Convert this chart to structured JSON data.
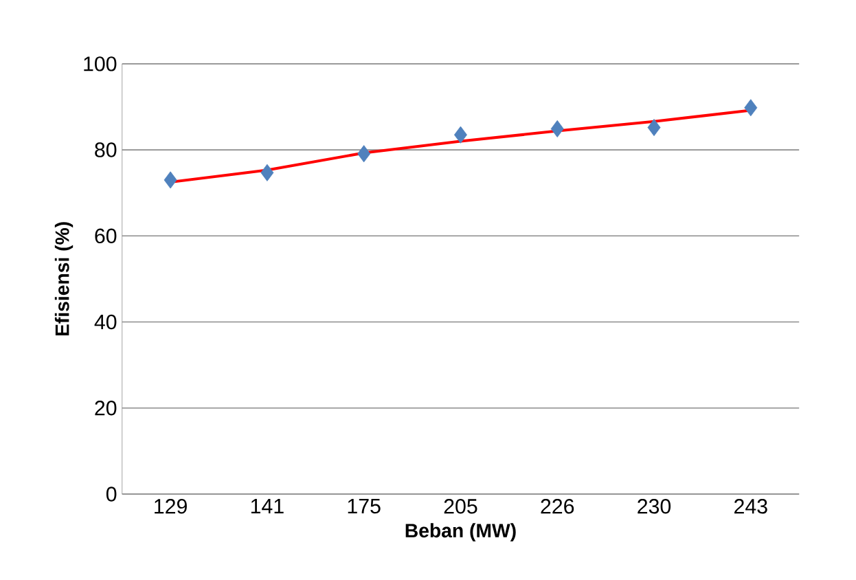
{
  "chart_data": {
    "type": "scatter",
    "xlabel": "Beban (MW)",
    "ylabel": "Efisiensi (%)",
    "categories": [
      "129",
      "141",
      "175",
      "205",
      "226",
      "230",
      "243"
    ],
    "series": [
      {
        "color": "#4f81bd",
        "marker": "diamond",
        "values": [
          73.0,
          74.7,
          79.1,
          83.5,
          84.9,
          85.2,
          89.8
        ]
      },
      {
        "type": "line",
        "color": "#ff0000",
        "marker": "none",
        "line_style": "solid",
        "values": [
          72.5,
          75.3,
          79.3,
          82.0,
          84.4,
          86.6,
          89.2
        ]
      }
    ],
    "ylim": [
      0,
      100
    ],
    "yticks": [
      0,
      20,
      40,
      60,
      80,
      100
    ],
    "grid": "y"
  }
}
